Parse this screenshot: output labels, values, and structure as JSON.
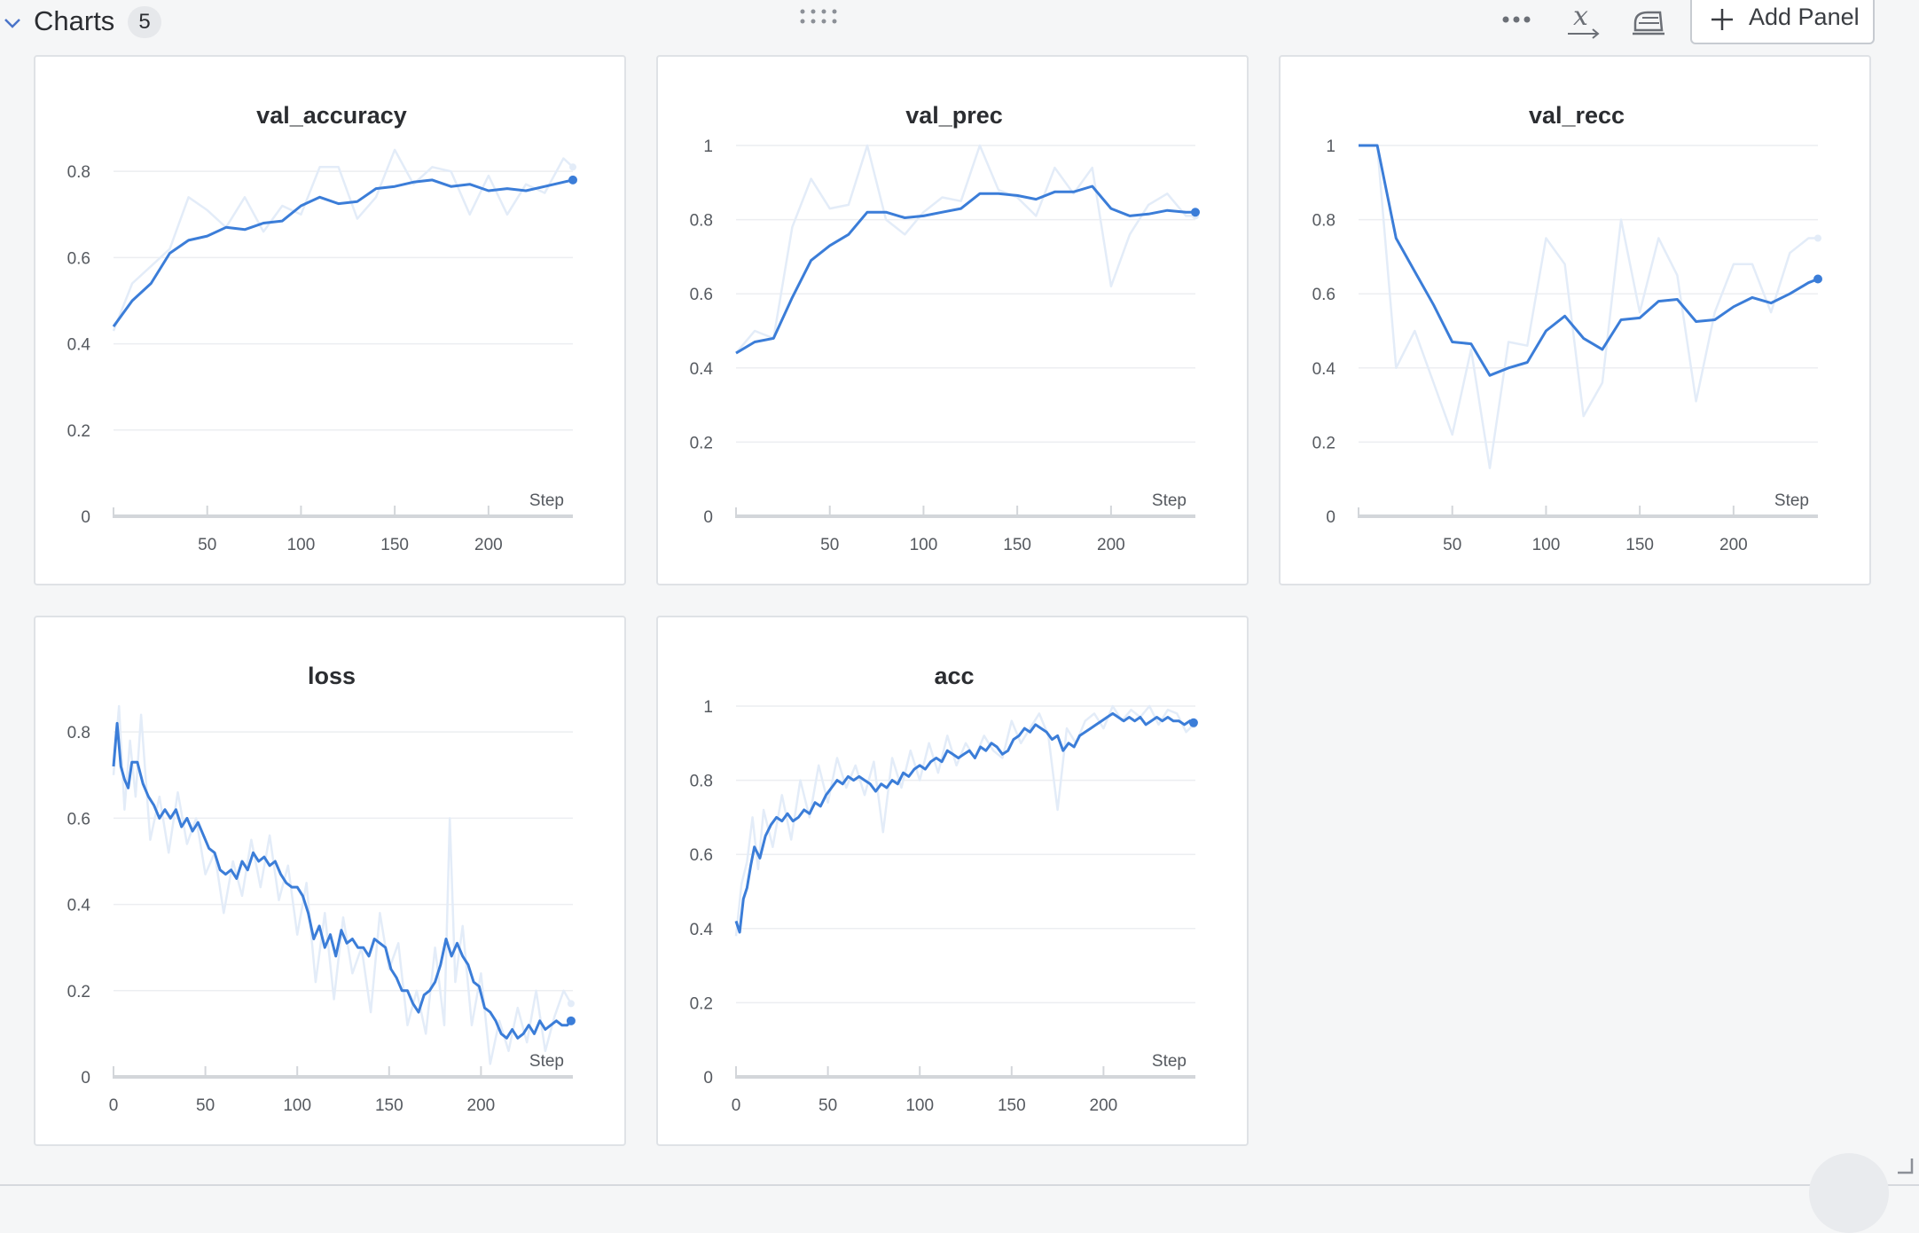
{
  "section": {
    "title": "Charts",
    "count": "5",
    "add_panel_label": "Add Panel",
    "icons": {
      "collapse": "chevron-down-icon",
      "drag": "drag-handle-icon",
      "more": "more-horizontal-icon",
      "x_axis": "x-axis-icon",
      "smoothing": "iron-icon",
      "add": "plus-icon"
    }
  },
  "colors": {
    "line": "#3b7dd8",
    "line_raw": "#e3ecf8",
    "grid": "#eceef1",
    "axis": "#d3d6da"
  },
  "chart_data": [
    {
      "type": "line",
      "title": "val_accuracy",
      "xlabel": "Step",
      "xlim": [
        0,
        245
      ],
      "ylim": [
        0,
        0.86
      ],
      "xticks": [
        50,
        100,
        150,
        200
      ],
      "yticks": [
        0,
        0.2,
        0.4,
        0.6,
        0.8
      ],
      "ytick_labels": [
        "0",
        "0.2",
        "0.4",
        "0.6",
        "0.8"
      ],
      "series": [
        {
          "role": "raw",
          "x": [
            0,
            10,
            20,
            30,
            40,
            50,
            60,
            70,
            80,
            90,
            100,
            110,
            120,
            130,
            140,
            150,
            160,
            170,
            180,
            190,
            200,
            210,
            220,
            230,
            240,
            245
          ],
          "y": [
            0.43,
            0.54,
            0.58,
            0.62,
            0.74,
            0.71,
            0.67,
            0.74,
            0.66,
            0.72,
            0.7,
            0.81,
            0.81,
            0.69,
            0.74,
            0.85,
            0.77,
            0.81,
            0.8,
            0.7,
            0.79,
            0.7,
            0.77,
            0.75,
            0.83,
            0.81
          ]
        },
        {
          "role": "smoothed",
          "x": [
            0,
            10,
            20,
            30,
            40,
            50,
            60,
            70,
            80,
            90,
            100,
            110,
            120,
            130,
            140,
            150,
            160,
            170,
            180,
            190,
            200,
            210,
            220,
            230,
            240,
            245
          ],
          "y": [
            0.44,
            0.5,
            0.54,
            0.61,
            0.64,
            0.65,
            0.67,
            0.665,
            0.68,
            0.685,
            0.72,
            0.74,
            0.725,
            0.73,
            0.76,
            0.765,
            0.775,
            0.78,
            0.765,
            0.77,
            0.755,
            0.76,
            0.755,
            0.765,
            0.775,
            0.78
          ]
        }
      ]
    },
    {
      "type": "line",
      "title": "val_prec",
      "xlabel": "Step",
      "xlim": [
        0,
        245
      ],
      "ylim": [
        0,
        1.0
      ],
      "xticks": [
        50,
        100,
        150,
        200
      ],
      "yticks": [
        0,
        0.2,
        0.4,
        0.6,
        0.8,
        1
      ],
      "ytick_labels": [
        "0",
        "0.2",
        "0.4",
        "0.6",
        "0.8",
        "1"
      ],
      "series": [
        {
          "role": "raw",
          "x": [
            0,
            10,
            20,
            30,
            40,
            50,
            60,
            70,
            80,
            90,
            100,
            110,
            120,
            130,
            140,
            150,
            160,
            170,
            180,
            190,
            200,
            210,
            220,
            230,
            240,
            245
          ],
          "y": [
            0.44,
            0.5,
            0.48,
            0.78,
            0.91,
            0.83,
            0.84,
            1.0,
            0.8,
            0.76,
            0.82,
            0.86,
            0.85,
            1.0,
            0.88,
            0.86,
            0.81,
            0.94,
            0.87,
            0.94,
            0.62,
            0.76,
            0.84,
            0.87,
            0.81,
            0.81
          ]
        },
        {
          "role": "smoothed",
          "x": [
            0,
            10,
            20,
            30,
            40,
            50,
            60,
            70,
            80,
            90,
            100,
            110,
            120,
            130,
            140,
            150,
            160,
            170,
            180,
            190,
            200,
            210,
            220,
            230,
            240,
            245
          ],
          "y": [
            0.44,
            0.47,
            0.48,
            0.59,
            0.69,
            0.73,
            0.76,
            0.82,
            0.82,
            0.805,
            0.81,
            0.82,
            0.83,
            0.87,
            0.87,
            0.865,
            0.855,
            0.875,
            0.875,
            0.89,
            0.83,
            0.81,
            0.815,
            0.825,
            0.82,
            0.82
          ]
        }
      ]
    },
    {
      "type": "line",
      "title": "val_recc",
      "xlabel": "Step",
      "xlim": [
        0,
        245
      ],
      "ylim": [
        0,
        1.0
      ],
      "xticks": [
        50,
        100,
        150,
        200
      ],
      "yticks": [
        0,
        0.2,
        0.4,
        0.6,
        0.8,
        1
      ],
      "ytick_labels": [
        "0",
        "0.2",
        "0.4",
        "0.6",
        "0.8",
        "1"
      ],
      "series": [
        {
          "role": "raw",
          "x": [
            0,
            10,
            20,
            30,
            40,
            50,
            60,
            70,
            80,
            90,
            100,
            110,
            120,
            130,
            140,
            150,
            160,
            170,
            180,
            190,
            200,
            210,
            220,
            230,
            240,
            245
          ],
          "y": [
            1.0,
            1.0,
            0.4,
            0.5,
            0.36,
            0.22,
            0.45,
            0.13,
            0.47,
            0.46,
            0.75,
            0.68,
            0.27,
            0.36,
            0.8,
            0.55,
            0.75,
            0.65,
            0.31,
            0.55,
            0.68,
            0.68,
            0.55,
            0.71,
            0.75,
            0.75
          ]
        },
        {
          "role": "smoothed",
          "x": [
            0,
            10,
            20,
            30,
            40,
            50,
            60,
            70,
            80,
            90,
            100,
            110,
            120,
            130,
            140,
            150,
            160,
            170,
            180,
            190,
            200,
            210,
            220,
            230,
            240,
            245
          ],
          "y": [
            1.0,
            1.0,
            0.75,
            0.66,
            0.57,
            0.47,
            0.465,
            0.38,
            0.4,
            0.415,
            0.5,
            0.54,
            0.48,
            0.45,
            0.53,
            0.535,
            0.58,
            0.585,
            0.525,
            0.53,
            0.565,
            0.59,
            0.575,
            0.6,
            0.63,
            0.64
          ]
        }
      ]
    },
    {
      "type": "line",
      "title": "loss",
      "xlabel": "Step",
      "xlim": [
        0,
        250
      ],
      "ylim": [
        0,
        0.86
      ],
      "xticks": [
        0,
        50,
        100,
        150,
        200
      ],
      "yticks": [
        0,
        0.2,
        0.4,
        0.6,
        0.8
      ],
      "ytick_labels": [
        "0",
        "0.2",
        "0.4",
        "0.6",
        "0.8"
      ],
      "series": [
        {
          "role": "raw",
          "x": [
            0,
            3,
            6,
            9,
            12,
            15,
            20,
            25,
            30,
            35,
            40,
            45,
            50,
            55,
            60,
            65,
            70,
            75,
            80,
            85,
            90,
            95,
            100,
            105,
            110,
            115,
            120,
            125,
            130,
            135,
            140,
            145,
            150,
            155,
            160,
            165,
            170,
            175,
            180,
            183,
            186,
            190,
            195,
            200,
            205,
            210,
            215,
            220,
            225,
            230,
            235,
            240,
            245,
            249
          ],
          "y": [
            0.7,
            0.86,
            0.62,
            0.78,
            0.65,
            0.84,
            0.55,
            0.65,
            0.52,
            0.66,
            0.54,
            0.6,
            0.47,
            0.52,
            0.38,
            0.5,
            0.42,
            0.55,
            0.44,
            0.56,
            0.41,
            0.49,
            0.33,
            0.45,
            0.22,
            0.38,
            0.18,
            0.37,
            0.24,
            0.3,
            0.15,
            0.38,
            0.25,
            0.31,
            0.12,
            0.2,
            0.1,
            0.3,
            0.12,
            0.6,
            0.22,
            0.35,
            0.12,
            0.24,
            0.03,
            0.13,
            0.06,
            0.16,
            0.08,
            0.2,
            0.06,
            0.14,
            0.2,
            0.17
          ]
        },
        {
          "role": "smoothed",
          "x": [
            0,
            2,
            4,
            6,
            8,
            10,
            13,
            16,
            19,
            22,
            25,
            28,
            31,
            34,
            37,
            40,
            43,
            46,
            49,
            52,
            55,
            58,
            61,
            64,
            67,
            70,
            73,
            76,
            79,
            82,
            85,
            88,
            91,
            94,
            97,
            100,
            103,
            106,
            109,
            112,
            115,
            118,
            121,
            124,
            127,
            130,
            133,
            136,
            139,
            142,
            145,
            148,
            151,
            154,
            157,
            160,
            163,
            166,
            169,
            172,
            175,
            178,
            181,
            184,
            187,
            190,
            193,
            196,
            199,
            202,
            205,
            208,
            211,
            214,
            217,
            220,
            223,
            226,
            229,
            232,
            235,
            238,
            241,
            244,
            247,
            249
          ],
          "y": [
            0.72,
            0.82,
            0.72,
            0.69,
            0.67,
            0.73,
            0.73,
            0.68,
            0.65,
            0.63,
            0.6,
            0.62,
            0.6,
            0.62,
            0.58,
            0.6,
            0.57,
            0.59,
            0.56,
            0.53,
            0.52,
            0.48,
            0.47,
            0.48,
            0.46,
            0.5,
            0.48,
            0.52,
            0.5,
            0.51,
            0.49,
            0.5,
            0.47,
            0.45,
            0.44,
            0.44,
            0.42,
            0.38,
            0.32,
            0.35,
            0.3,
            0.33,
            0.28,
            0.34,
            0.31,
            0.32,
            0.3,
            0.3,
            0.28,
            0.32,
            0.31,
            0.3,
            0.25,
            0.23,
            0.2,
            0.2,
            0.17,
            0.15,
            0.19,
            0.2,
            0.22,
            0.26,
            0.32,
            0.28,
            0.31,
            0.28,
            0.26,
            0.22,
            0.21,
            0.16,
            0.15,
            0.13,
            0.1,
            0.09,
            0.11,
            0.09,
            0.1,
            0.12,
            0.1,
            0.13,
            0.11,
            0.12,
            0.13,
            0.12,
            0.12,
            0.13
          ]
        }
      ]
    },
    {
      "type": "line",
      "title": "acc",
      "xlabel": "Step",
      "xlim": [
        0,
        250
      ],
      "ylim": [
        0,
        1.0
      ],
      "xticks": [
        0,
        50,
        100,
        150,
        200
      ],
      "yticks": [
        0,
        0.2,
        0.4,
        0.6,
        0.8,
        1
      ],
      "ytick_labels": [
        "0",
        "0.2",
        "0.4",
        "0.6",
        "0.8",
        "1"
      ],
      "series": [
        {
          "role": "raw",
          "x": [
            0,
            3,
            6,
            9,
            12,
            15,
            20,
            25,
            30,
            35,
            40,
            45,
            50,
            55,
            60,
            65,
            70,
            75,
            80,
            85,
            90,
            95,
            100,
            105,
            110,
            115,
            120,
            125,
            130,
            135,
            140,
            145,
            150,
            155,
            160,
            165,
            170,
            175,
            180,
            185,
            190,
            195,
            200,
            205,
            210,
            215,
            220,
            225,
            230,
            235,
            240,
            245,
            249
          ],
          "y": [
            0.38,
            0.52,
            0.58,
            0.7,
            0.56,
            0.72,
            0.62,
            0.76,
            0.64,
            0.8,
            0.7,
            0.84,
            0.74,
            0.86,
            0.78,
            0.84,
            0.76,
            0.85,
            0.66,
            0.86,
            0.78,
            0.88,
            0.8,
            0.9,
            0.82,
            0.92,
            0.84,
            0.9,
            0.86,
            0.92,
            0.88,
            0.86,
            0.96,
            0.9,
            0.94,
            0.98,
            0.92,
            0.72,
            0.94,
            0.9,
            0.96,
            0.98,
            0.94,
            1.0,
            0.96,
            0.99,
            0.97,
            1.0,
            0.95,
            0.99,
            0.98,
            0.93,
            0.95
          ]
        },
        {
          "role": "smoothed",
          "x": [
            0,
            2,
            4,
            6,
            8,
            10,
            13,
            16,
            19,
            22,
            25,
            28,
            31,
            34,
            37,
            40,
            43,
            46,
            49,
            52,
            55,
            58,
            61,
            64,
            67,
            70,
            73,
            76,
            79,
            82,
            85,
            88,
            91,
            94,
            97,
            100,
            103,
            106,
            109,
            112,
            115,
            118,
            121,
            124,
            127,
            130,
            133,
            136,
            139,
            142,
            145,
            148,
            151,
            154,
            157,
            160,
            163,
            166,
            169,
            172,
            175,
            178,
            181,
            184,
            187,
            190,
            193,
            196,
            199,
            202,
            205,
            208,
            211,
            214,
            217,
            220,
            223,
            226,
            229,
            232,
            235,
            238,
            241,
            244,
            247,
            249
          ],
          "y": [
            0.42,
            0.39,
            0.48,
            0.51,
            0.57,
            0.62,
            0.59,
            0.65,
            0.68,
            0.7,
            0.69,
            0.71,
            0.69,
            0.7,
            0.72,
            0.71,
            0.74,
            0.73,
            0.76,
            0.78,
            0.8,
            0.79,
            0.81,
            0.8,
            0.81,
            0.8,
            0.79,
            0.77,
            0.79,
            0.78,
            0.8,
            0.79,
            0.82,
            0.81,
            0.83,
            0.84,
            0.83,
            0.85,
            0.86,
            0.85,
            0.88,
            0.87,
            0.86,
            0.87,
            0.88,
            0.86,
            0.89,
            0.88,
            0.9,
            0.89,
            0.87,
            0.88,
            0.91,
            0.92,
            0.94,
            0.93,
            0.95,
            0.94,
            0.93,
            0.91,
            0.92,
            0.88,
            0.9,
            0.89,
            0.92,
            0.93,
            0.94,
            0.95,
            0.96,
            0.97,
            0.98,
            0.97,
            0.96,
            0.97,
            0.96,
            0.97,
            0.95,
            0.96,
            0.97,
            0.96,
            0.97,
            0.96,
            0.96,
            0.95,
            0.96,
            0.955
          ]
        }
      ]
    }
  ]
}
